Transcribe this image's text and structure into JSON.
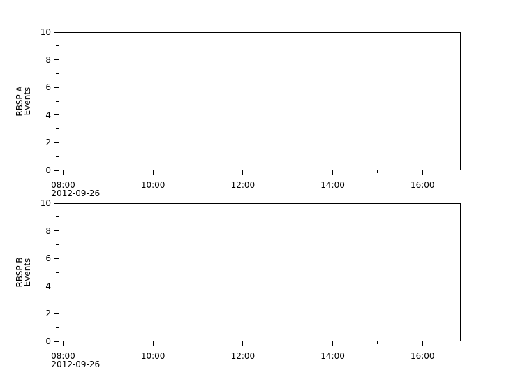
{
  "figure": {
    "background_color": "#ffffff",
    "axis_color": "#000000",
    "text_color": "#000000"
  },
  "chart_data": [
    {
      "type": "line",
      "panel": "top",
      "title": "",
      "xlabel": "",
      "ylabel": "RBSP-A Events",
      "ylabel_lines": [
        "RBSP-A",
        "Events"
      ],
      "date_label": "2012-09-26",
      "ylim": [
        0,
        10
      ],
      "y_major_ticks": [
        0,
        2,
        4,
        6,
        8,
        10
      ],
      "y_minor_ticks": [
        1,
        3,
        5,
        7,
        9
      ],
      "x_axis_hours": {
        "start": 7.9,
        "end": 16.85
      },
      "x_major_ticks": [
        {
          "hour": 8,
          "label": "08:00"
        },
        {
          "hour": 10,
          "label": "10:00"
        },
        {
          "hour": 12,
          "label": "12:00"
        },
        {
          "hour": 14,
          "label": "14:00"
        },
        {
          "hour": 16,
          "label": "16:00"
        }
      ],
      "x_minor_tick_hours": [
        9,
        11,
        13,
        15
      ],
      "grid": false,
      "series": []
    },
    {
      "type": "line",
      "panel": "bottom",
      "title": "",
      "xlabel": "",
      "ylabel": "RBSP-B Events",
      "ylabel_lines": [
        "RBSP-B",
        "Events"
      ],
      "date_label": "2012-09-26",
      "ylim": [
        0,
        10
      ],
      "y_major_ticks": [
        0,
        2,
        4,
        6,
        8,
        10
      ],
      "y_minor_ticks": [
        1,
        3,
        5,
        7,
        9
      ],
      "x_axis_hours": {
        "start": 7.9,
        "end": 16.85
      },
      "x_major_ticks": [
        {
          "hour": 8,
          "label": "08:00"
        },
        {
          "hour": 10,
          "label": "10:00"
        },
        {
          "hour": 12,
          "label": "12:00"
        },
        {
          "hour": 14,
          "label": "14:00"
        },
        {
          "hour": 16,
          "label": "16:00"
        }
      ],
      "x_minor_tick_hours": [
        9,
        11,
        13,
        15
      ],
      "grid": false,
      "series": []
    }
  ]
}
